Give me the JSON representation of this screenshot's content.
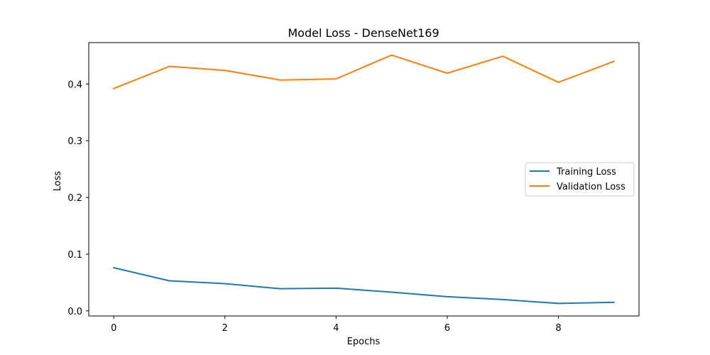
{
  "chart_data": {
    "type": "line",
    "title": "Model Loss - DenseNet169",
    "xlabel": "Epochs",
    "ylabel": "Loss",
    "x": [
      0,
      1,
      2,
      3,
      4,
      5,
      6,
      7,
      8,
      9
    ],
    "xlim": [
      -0.45,
      9.45
    ],
    "ylim": [
      -0.009,
      0.473
    ],
    "xticks": [
      0,
      2,
      4,
      6,
      8
    ],
    "yticks": [
      0.0,
      0.1,
      0.2,
      0.3,
      0.4
    ],
    "xtick_labels": [
      "0",
      "2",
      "4",
      "6",
      "8"
    ],
    "ytick_labels": [
      "0.0",
      "0.1",
      "0.2",
      "0.3",
      "0.4"
    ],
    "grid": false,
    "legend_position": "center-right",
    "series": [
      {
        "name": "Training Loss",
        "color": "#1f77b4",
        "values": [
          0.076,
          0.053,
          0.048,
          0.039,
          0.04,
          0.033,
          0.025,
          0.02,
          0.013,
          0.015
        ]
      },
      {
        "name": "Validation Loss",
        "color": "#ff7f0e",
        "values": [
          0.392,
          0.431,
          0.424,
          0.407,
          0.409,
          0.451,
          0.419,
          0.449,
          0.403,
          0.44
        ]
      }
    ]
  }
}
